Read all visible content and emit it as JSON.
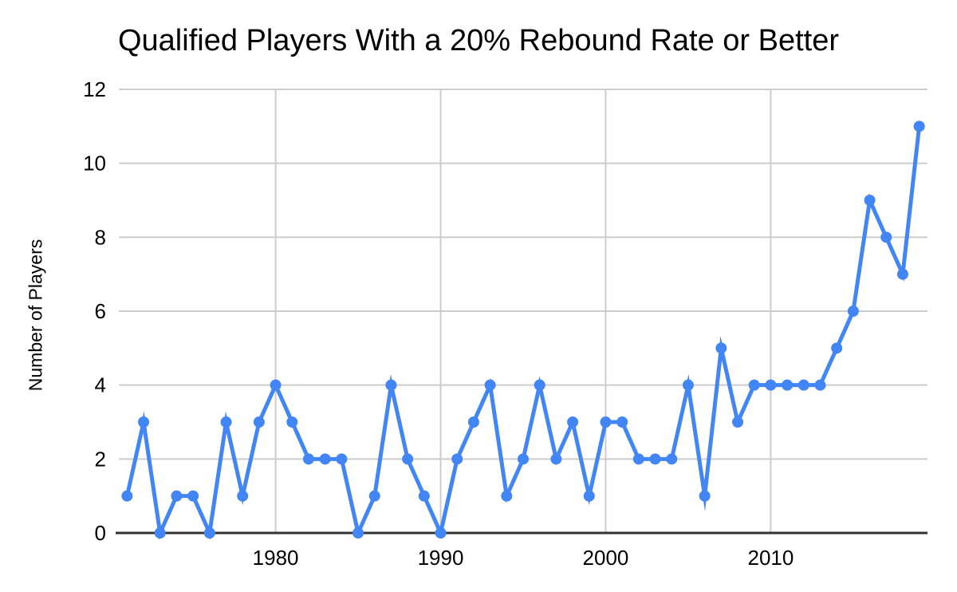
{
  "title": "Qualified Players With a 20% Rebound Rate or Better",
  "chart_data": {
    "type": "line",
    "title": "Qualified Players With a 20% Rebound Rate or Better",
    "xlabel": "",
    "ylabel": "Number of Players",
    "x": [
      1971,
      1972,
      1973,
      1974,
      1975,
      1976,
      1977,
      1978,
      1979,
      1980,
      1981,
      1982,
      1983,
      1984,
      1985,
      1986,
      1987,
      1988,
      1989,
      1990,
      1991,
      1992,
      1993,
      1994,
      1995,
      1996,
      1997,
      1998,
      1999,
      2000,
      2001,
      2002,
      2003,
      2004,
      2005,
      2006,
      2007,
      2008,
      2009,
      2010,
      2011,
      2012,
      2013,
      2014,
      2015,
      2016,
      2017,
      2018,
      2019
    ],
    "values": [
      1,
      3,
      0,
      1,
      1,
      0,
      3,
      1,
      3,
      4,
      3,
      2,
      2,
      2,
      0,
      1,
      4,
      2,
      1,
      0,
      2,
      3,
      4,
      1,
      2,
      4,
      2,
      3,
      1,
      3,
      3,
      2,
      2,
      2,
      4,
      1,
      5,
      3,
      4,
      4,
      4,
      4,
      4,
      5,
      6,
      9,
      8,
      7,
      11
    ],
    "ylim": [
      0,
      12
    ],
    "y_ticks": [
      0,
      2,
      4,
      6,
      8,
      10,
      12
    ],
    "x_tick_labels": [
      "1980",
      "1990",
      "2000",
      "2010"
    ],
    "x_tick_years": [
      1980,
      1990,
      2000,
      2010
    ],
    "grid": "on",
    "legend": "none",
    "series_color": "#4285f4",
    "grid_color": "#cccccc",
    "axis_line_color": "#333333",
    "tick_label_color": "#000000",
    "background_color": "#ffffff",
    "marker": "circle"
  }
}
